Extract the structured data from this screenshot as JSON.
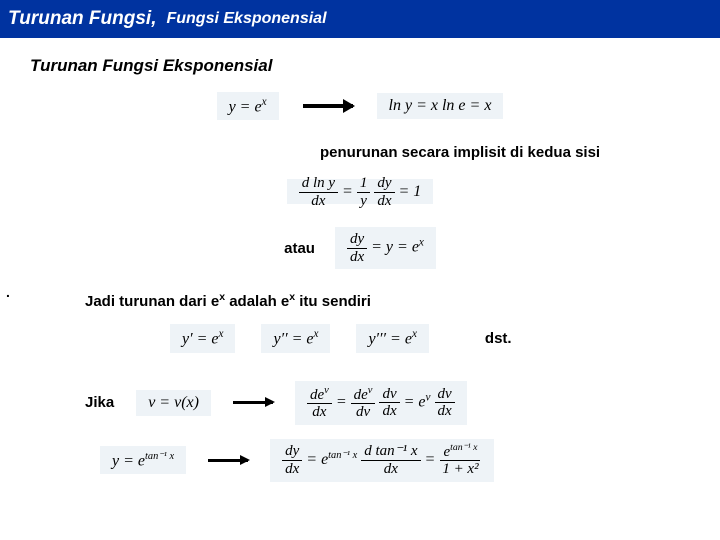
{
  "header": {
    "main": "Turunan Fungsi,",
    "sub": "Fungsi Eksponensial"
  },
  "subtitle": "Turunan Fungsi Eksponensial",
  "eq1_left": "y = e",
  "eq1_left_sup": "x",
  "eq1_right_a": "ln y = x ln e = x",
  "note_implicit": "penurunan secara implisit di kedua sisi",
  "deriv_frac1_num": "d ln y",
  "deriv_frac1_den": "dx",
  "deriv_frac2_num": "1",
  "deriv_frac2_den": "y",
  "deriv_frac3_num": "dy",
  "deriv_frac3_den": "dx",
  "deriv_eq_end": "= 1",
  "atau": "atau",
  "atau_frac_num": "dy",
  "atau_frac_den": "dx",
  "atau_rhs": "= y = e",
  "atau_sup": "x",
  "conclusion_pre": "Jadi turunan dari e",
  "conclusion_mid": " adalah e",
  "conclusion_post": " itu sendiri",
  "sup_x": "x",
  "yprime1": "y′ = e",
  "yprime2": "y′′ = e",
  "yprime3": "y′′′ = e",
  "dst": "dst.",
  "jika": "Jika",
  "jika_eq": "v = v(x)",
  "chain1_num": "de",
  "chain1_num_sup": "v",
  "chain1_den": "dx",
  "chain2_num": "de",
  "chain2_num_sup": "v",
  "chain2_den": "dv",
  "chain3_num": "dv",
  "chain3_den": "dx",
  "chain_rhs": "= e",
  "chain_rhs_sup": "v",
  "chain4_num": "dv",
  "chain4_den": "dx",
  "example_y": "y = e",
  "example_y_sup": "tan⁻¹ x",
  "ex_frac1_num": "dy",
  "ex_frac1_den": "dx",
  "ex_mid": "= e",
  "ex_mid_sup": "tan⁻¹ x",
  "ex_frac2_num": "d tan⁻¹ x",
  "ex_frac2_den": "dx",
  "ex_eq": "=",
  "ex_rhs_num_a": "e",
  "ex_rhs_num_sup": "tan⁻¹ x",
  "ex_rhs_den": "1 + x²",
  "dot": "."
}
